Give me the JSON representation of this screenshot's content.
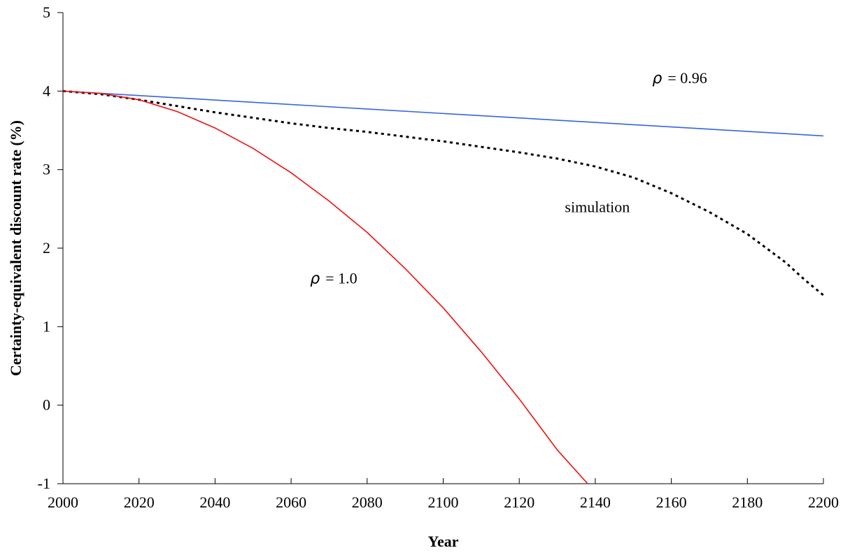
{
  "chart_data": {
    "type": "line",
    "title": "",
    "xlabel": "Year",
    "ylabel": "Certainty-equivalent discount rate (%)",
    "xlim": [
      2000,
      2200
    ],
    "ylim": [
      -1,
      5
    ],
    "xticks": [
      2000,
      2020,
      2040,
      2060,
      2080,
      2100,
      2120,
      2140,
      2160,
      2180,
      2200
    ],
    "yticks": [
      -1,
      0,
      1,
      2,
      3,
      4,
      5
    ],
    "grid": false,
    "series": [
      {
        "key": "rho096",
        "color": "#3366dd",
        "style": "solid",
        "x": [
          2000,
          2200
        ],
        "y": [
          4.0,
          3.43
        ]
      },
      {
        "key": "simulation",
        "color": "#000000",
        "style": "dotted",
        "x": [
          2000,
          2010,
          2020,
          2030,
          2040,
          2050,
          2060,
          2070,
          2080,
          2090,
          2100,
          2110,
          2120,
          2130,
          2140,
          2150,
          2160,
          2170,
          2180,
          2190,
          2195,
          2200
        ],
        "y": [
          4.0,
          3.96,
          3.89,
          3.81,
          3.73,
          3.66,
          3.59,
          3.53,
          3.48,
          3.42,
          3.36,
          3.29,
          3.22,
          3.14,
          3.04,
          2.9,
          2.7,
          2.46,
          2.18,
          1.82,
          1.6,
          1.4
        ]
      },
      {
        "key": "rho10",
        "color": "#ee1111",
        "style": "solid",
        "x": [
          2000,
          2010,
          2020,
          2030,
          2040,
          2050,
          2060,
          2070,
          2080,
          2090,
          2100,
          2110,
          2120,
          2130,
          2138
        ],
        "y": [
          4.0,
          3.97,
          3.89,
          3.74,
          3.53,
          3.27,
          2.96,
          2.6,
          2.2,
          1.74,
          1.24,
          0.68,
          0.08,
          -0.57,
          -1.0
        ]
      }
    ],
    "annotations": [
      {
        "symbol": "ρ",
        "text": "= 0.96",
        "x": 2155,
        "y": 4.1
      },
      {
        "text": "simulation",
        "x": 2132,
        "y": 2.46
      },
      {
        "symbol": "ρ",
        "text": "= 1.0",
        "x": 2065,
        "y": 1.55
      }
    ]
  }
}
